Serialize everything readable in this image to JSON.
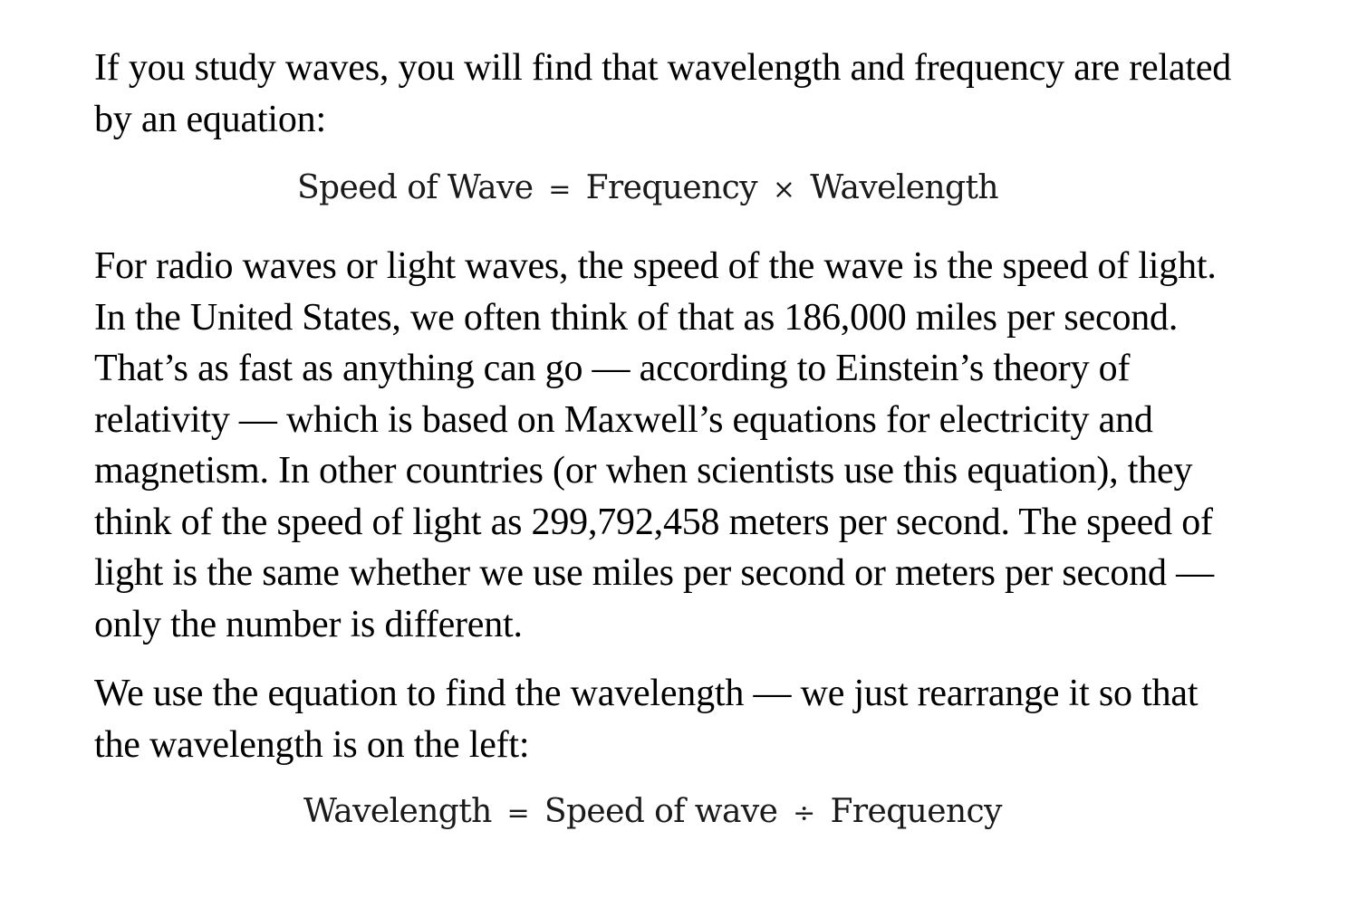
{
  "paragraphs": {
    "intro": "If you study waves, you will find that wavelength and frequency are related by an equation:",
    "speed_of_light": "For radio waves or light waves, the speed of the wave is the speed of light. In the United States, we often think of that as 186,000 miles per second. That’s as fast as anything can go — according to Einstein’s theory of relativity — which is based on Maxwell’s equations for electricity and magnetism. In other countries (or when scientists use this equation), they think of the speed of light as 299,792,458 meters per second. The speed of light is the same whether we use miles per second or meters per second — only the number is different.",
    "rearrange": "We use the equation to find the wavelength — we just rearrange it so that the wavelength is on the left:"
  },
  "equations": {
    "first": {
      "left": "Speed of Wave",
      "equals": "=",
      "term1": "Frequency",
      "operator": "×",
      "term2": "Wavelength"
    },
    "second": {
      "left": "Wavelength",
      "equals": "=",
      "term1": "Speed of wave",
      "operator": "÷",
      "term2": "Frequency"
    }
  }
}
